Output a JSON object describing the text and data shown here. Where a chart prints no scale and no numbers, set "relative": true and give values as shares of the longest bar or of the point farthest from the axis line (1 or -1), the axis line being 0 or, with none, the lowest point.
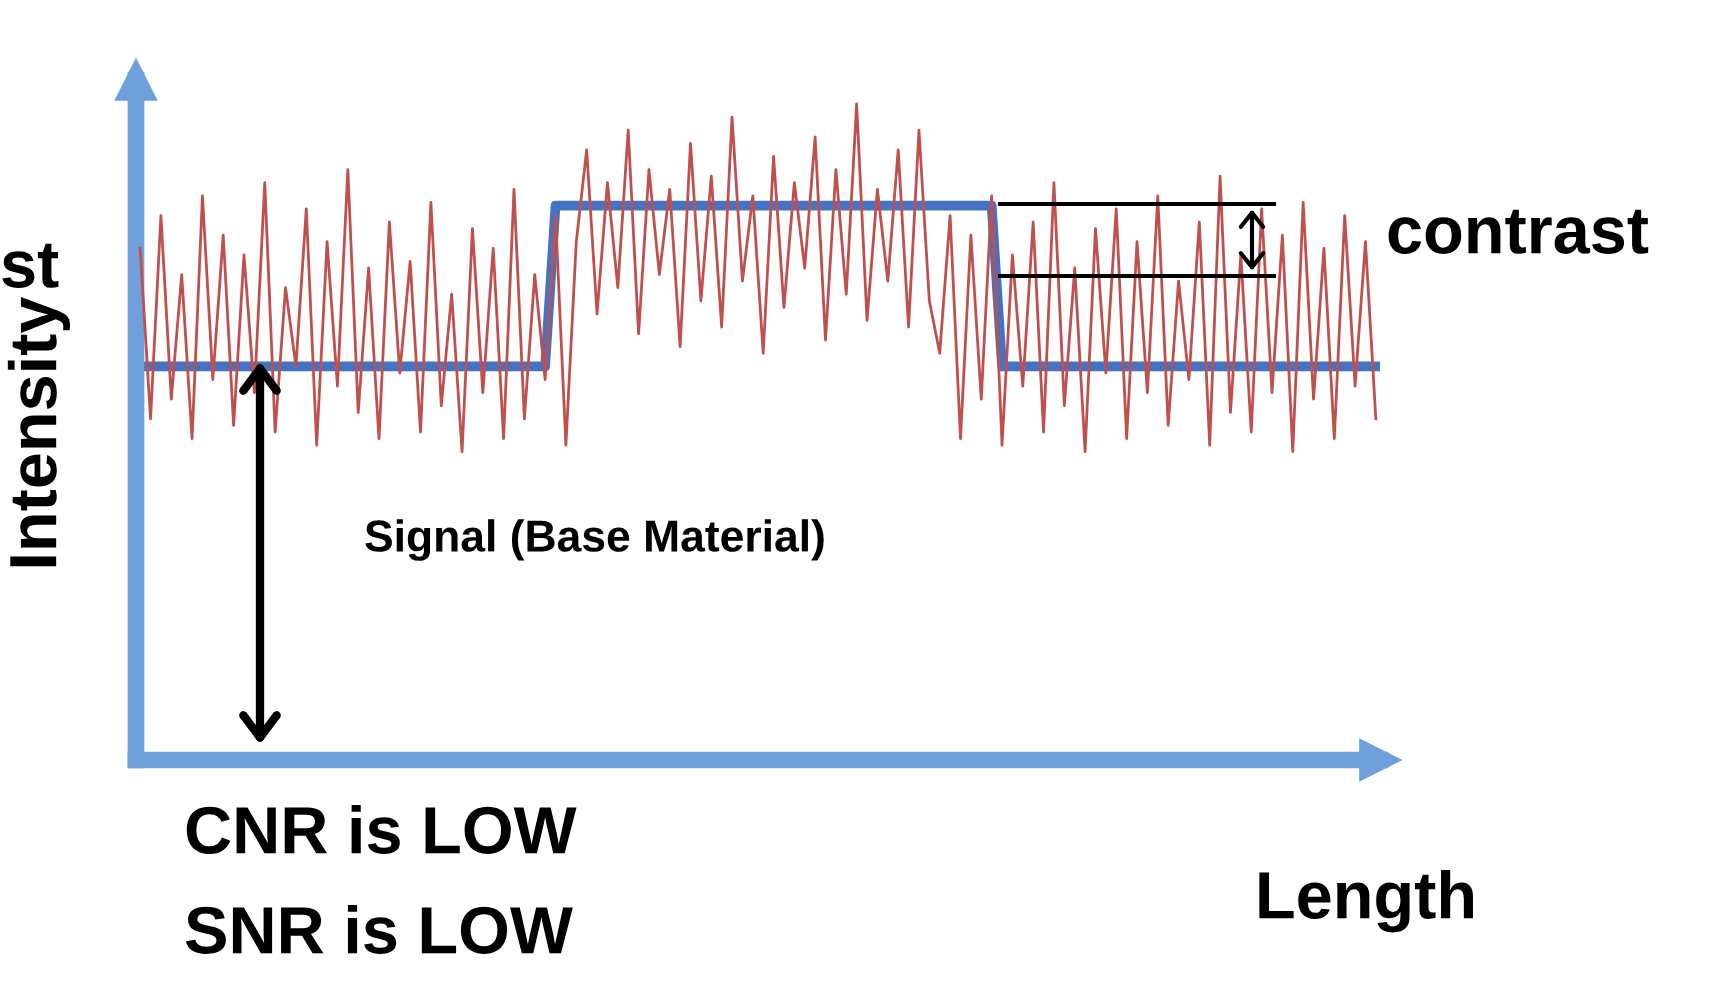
{
  "chart_data": {
    "type": "line",
    "relative": true,
    "xlabel": "Length",
    "ylabel": "Intensity",
    "categories": [
      null,
      null,
      null,
      null,
      null,
      null,
      null,
      null,
      null,
      null,
      null,
      null,
      null,
      null,
      null,
      null,
      null,
      null,
      null,
      null,
      null,
      null,
      null,
      null,
      null,
      null,
      null,
      null,
      null,
      null,
      null,
      null,
      null,
      null,
      null,
      null,
      null,
      null,
      null,
      null,
      null,
      null,
      null,
      null,
      null,
      null,
      null,
      null,
      null,
      null,
      null,
      null,
      null,
      null,
      null,
      null,
      null,
      null,
      null,
      null,
      null,
      null,
      null,
      null,
      null,
      null,
      null,
      null,
      null,
      null,
      null,
      null,
      null,
      null,
      null,
      null,
      null,
      null,
      null,
      null,
      null,
      null,
      null,
      null,
      null,
      null,
      null,
      null,
      null,
      null,
      null,
      null,
      null,
      null,
      null,
      null,
      null,
      null,
      null,
      null,
      null,
      null,
      null,
      null,
      null,
      null,
      null,
      null,
      null,
      null,
      null,
      null,
      null,
      null,
      null,
      null,
      null,
      null,
      null,
      null
    ],
    "series": [
      {
        "color": "#4472c4",
        "values": [
          0.6,
          0.6,
          0.6,
          0.6,
          0.6,
          0.6,
          0.6,
          0.6,
          0.6,
          0.6,
          0.6,
          0.6,
          0.6,
          0.6,
          0.6,
          0.6,
          0.6,
          0.6,
          0.6,
          0.6,
          0.6,
          0.6,
          0.6,
          0.6,
          0.6,
          0.6,
          0.6,
          0.6,
          0.6,
          0.6,
          0.6,
          0.6,
          0.6,
          0.6,
          0.6,
          0.6,
          0.6,
          0.6,
          0.6,
          0.6,
          0.845,
          0.845,
          0.845,
          0.845,
          0.845,
          0.845,
          0.845,
          0.845,
          0.845,
          0.845,
          0.845,
          0.845,
          0.845,
          0.845,
          0.845,
          0.845,
          0.845,
          0.845,
          0.845,
          0.845,
          0.845,
          0.845,
          0.845,
          0.845,
          0.845,
          0.845,
          0.845,
          0.845,
          0.845,
          0.845,
          0.845,
          0.845,
          0.845,
          0.845,
          0.845,
          0.845,
          0.845,
          0.845,
          0.845,
          0.845,
          0.845,
          0.845,
          0.845,
          0.6,
          0.6,
          0.6,
          0.6,
          0.6,
          0.6,
          0.6,
          0.6,
          0.6,
          0.6,
          0.6,
          0.6,
          0.6,
          0.6,
          0.6,
          0.6,
          0.6,
          0.6,
          0.6,
          0.6,
          0.6,
          0.6,
          0.6,
          0.6,
          0.6,
          0.6,
          0.6,
          0.6,
          0.6,
          0.6,
          0.6,
          0.6,
          0.6,
          0.6,
          0.6,
          0.6,
          0.6
        ]
      },
      {
        "color": "#c0504d",
        "values": [
          0.78,
          0.52,
          0.83,
          0.55,
          0.74,
          0.49,
          0.86,
          0.58,
          0.8,
          0.51,
          0.77,
          0.56,
          0.88,
          0.5,
          0.72,
          0.6,
          0.84,
          0.48,
          0.79,
          0.57,
          0.9,
          0.53,
          0.75,
          0.49,
          0.82,
          0.59,
          0.76,
          0.5,
          0.85,
          0.54,
          0.71,
          0.47,
          0.81,
          0.56,
          0.78,
          0.49,
          0.87,
          0.52,
          0.74,
          0.58,
          0.83,
          0.48,
          0.79,
          0.93,
          0.68,
          0.88,
          0.72,
          0.96,
          0.65,
          0.9,
          0.74,
          0.87,
          0.63,
          0.94,
          0.7,
          0.89,
          0.66,
          0.98,
          0.73,
          0.86,
          0.62,
          0.92,
          0.69,
          0.88,
          0.75,
          0.95,
          0.64,
          0.9,
          0.71,
          1,
          0.67,
          0.87,
          0.73,
          0.93,
          0.66,
          0.96,
          0.7,
          0.62,
          0.83,
          0.49,
          0.8,
          0.55,
          0.86,
          0.48,
          0.77,
          0.57,
          0.82,
          0.5,
          0.88,
          0.54,
          0.75,
          0.47,
          0.81,
          0.59,
          0.84,
          0.49,
          0.79,
          0.56,
          0.86,
          0.51,
          0.73,
          0.58,
          0.82,
          0.48,
          0.89,
          0.53,
          0.77,
          0.5,
          0.84,
          0.56,
          0.8,
          0.47,
          0.85,
          0.55,
          0.78,
          0.49,
          0.83,
          0.57,
          0.79,
          0.52
        ]
      }
    ],
    "annotations": [
      "st",
      "contrast",
      "Signal (Base Material)",
      "CNR is LOW",
      "SNR is LOW"
    ]
  }
}
